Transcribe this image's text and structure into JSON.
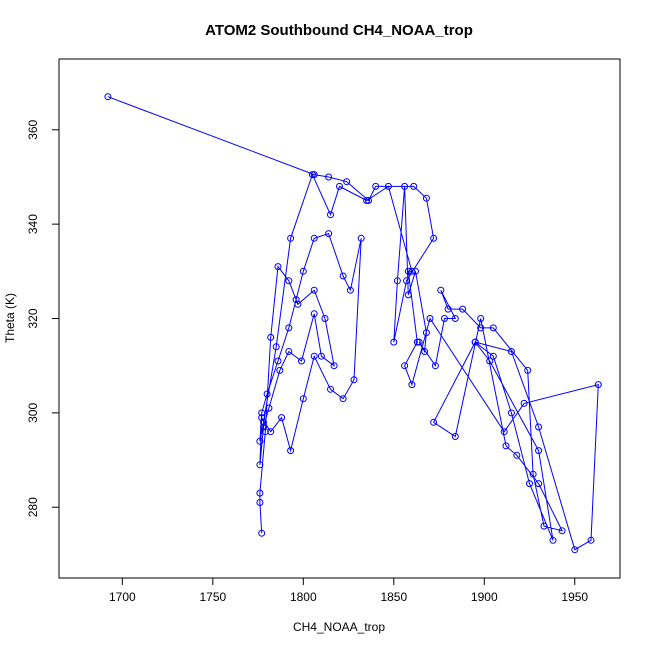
{
  "chart_data": {
    "type": "line",
    "title": "ATOM2 Southbound CH4_NOAA_trop",
    "xlabel": "CH4_NOAA_trop",
    "ylabel": "Theta (K)",
    "xlim": [
      1665,
      1975
    ],
    "ylim": [
      265,
      375
    ],
    "xticks": [
      1700,
      1750,
      1800,
      1850,
      1900,
      1950
    ],
    "yticks": [
      280,
      300,
      320,
      340,
      360
    ],
    "grid": false,
    "series": [
      {
        "name": "CH4_NOAA_trop",
        "color": "#0000ff",
        "style": "both (lines and open circles)",
        "x": [
          1692,
          1806,
          1814,
          1824,
          1836,
          1840,
          1861,
          1868,
          1872,
          1857,
          1850,
          1852,
          1856,
          1858,
          1862,
          1868,
          1867,
          1864,
          1873,
          1878,
          1884,
          1876,
          1880,
          1888,
          1898,
          1905,
          1924,
          1927,
          1933,
          1943,
          1930,
          1918,
          1912,
          1898,
          1884,
          1872,
          1895,
          1903,
          1930,
          1938,
          1925,
          1915,
          1905,
          1895,
          1915,
          1930,
          1950,
          1959,
          1963,
          1922,
          1911,
          1870,
          1860,
          1856,
          1863,
          1858,
          1860,
          1847,
          1835,
          1820,
          1815,
          1805,
          1793,
          1785,
          1778,
          1776,
          1777,
          1780,
          1786,
          1792,
          1796,
          1800,
          1806,
          1814,
          1822,
          1826,
          1832,
          1828,
          1822,
          1815,
          1806,
          1800,
          1793,
          1788,
          1782,
          1777,
          1776,
          1778,
          1781,
          1787,
          1792,
          1799,
          1806,
          1810,
          1817,
          1812,
          1806,
          1797,
          1792,
          1786,
          1782,
          1779,
          1776,
          1776,
          1777
        ],
        "y": [
          367,
          350.5,
          350,
          349,
          345,
          348,
          348,
          345.5,
          337,
          328,
          315,
          328,
          348,
          325,
          330,
          317,
          313,
          315,
          310,
          320,
          320,
          326,
          322,
          322,
          318,
          318,
          309,
          287,
          276,
          275,
          285,
          291,
          293,
          320,
          295,
          298,
          315,
          311,
          292,
          273,
          285,
          300,
          312,
          315,
          313,
          297,
          271,
          273,
          306,
          302,
          296,
          320,
          306,
          310,
          315,
          330,
          330,
          348,
          345,
          348,
          342,
          350.5,
          337,
          314,
          298,
          294,
          300,
          304,
          311,
          318,
          324,
          330,
          337,
          338,
          329,
          326,
          337,
          307,
          303,
          305,
          312,
          303,
          292,
          299,
          296,
          299,
          289,
          297,
          301,
          309,
          313,
          311,
          321,
          312,
          310,
          320,
          326,
          323,
          328,
          331,
          316,
          296,
          283,
          281,
          274.5
        ]
      }
    ]
  }
}
